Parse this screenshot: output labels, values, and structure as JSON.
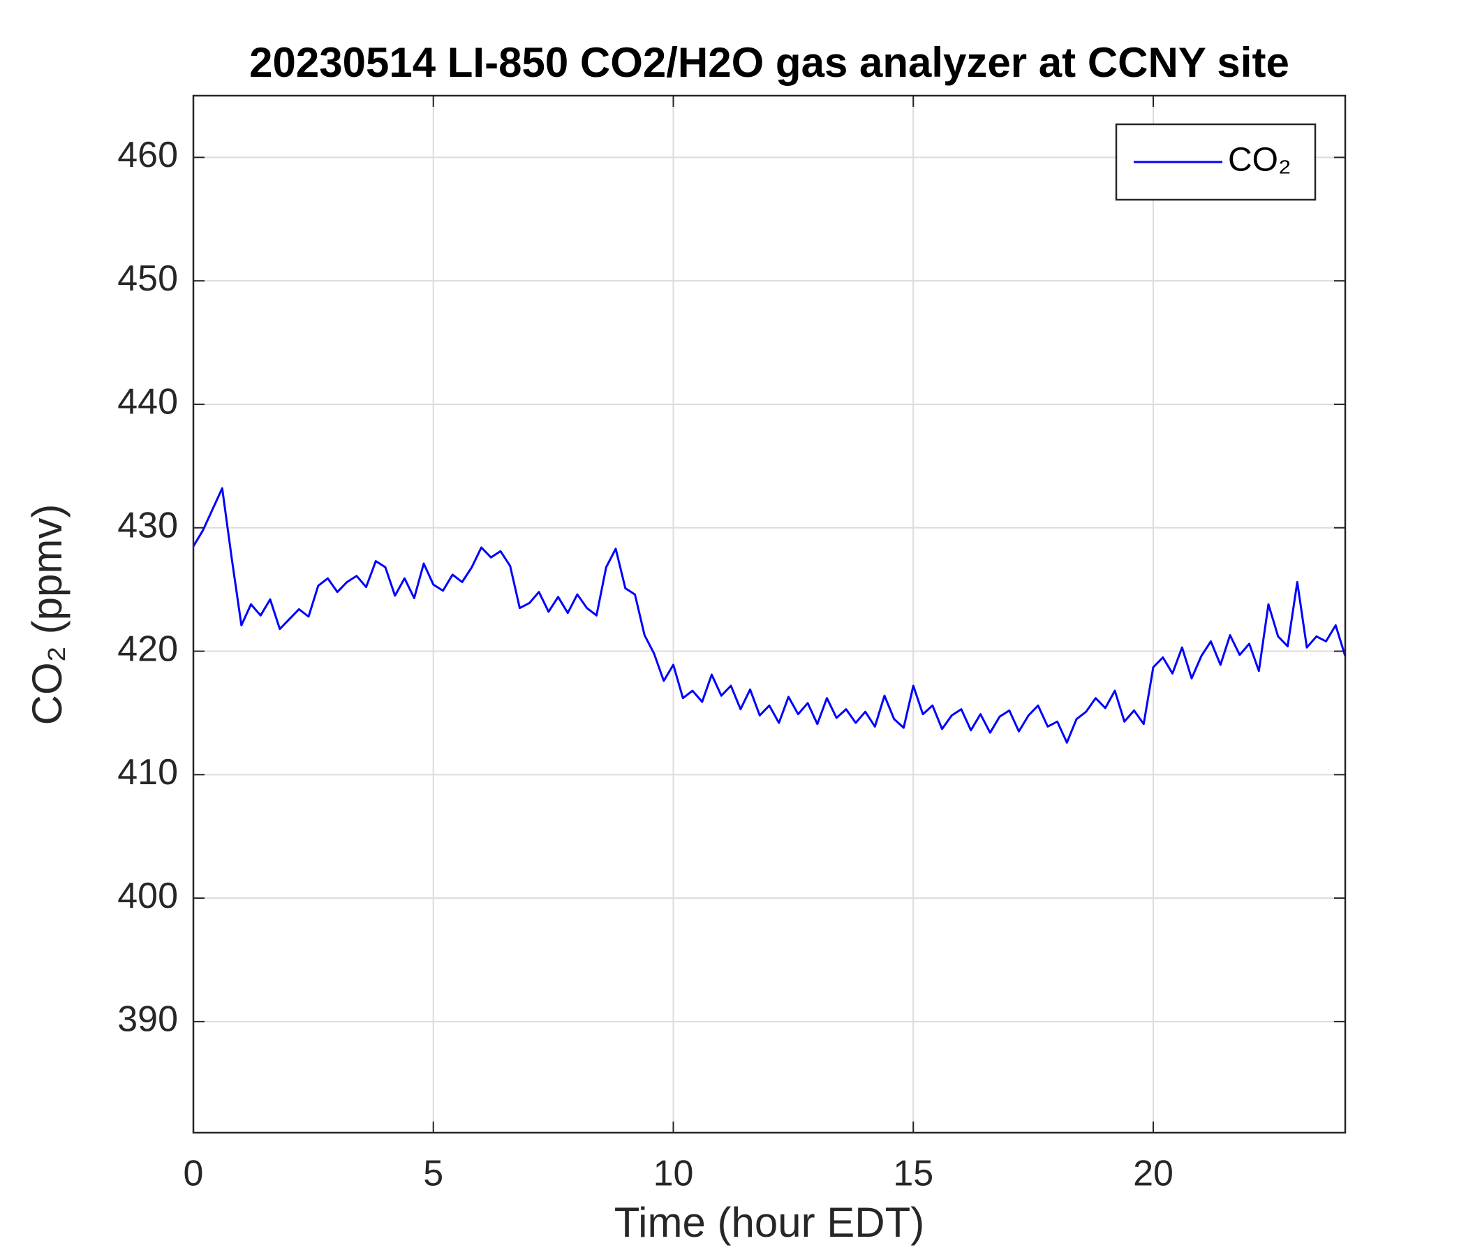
{
  "chart_data": {
    "type": "line",
    "title": "20230514 LI-850 CO2/H2O gas analyzer at CCNY site",
    "x_label": "Time (hour EDT)",
    "y_label": "CO₂ (ppmv)",
    "x": [
      0,
      0.2,
      0.4,
      0.6,
      0.8,
      1,
      1.2,
      1.4,
      1.6,
      1.8,
      2,
      2.2,
      2.4,
      2.6,
      2.8,
      3,
      3.2,
      3.4,
      3.6,
      3.8,
      4,
      4.2,
      4.4,
      4.6,
      4.8,
      5,
      5.2,
      5.4,
      5.6,
      5.8,
      6,
      6.2,
      6.4,
      6.6,
      6.8,
      7,
      7.2,
      7.4,
      7.6,
      7.8,
      8,
      8.2,
      8.4,
      8.6,
      8.8,
      9,
      9.2,
      9.4,
      9.6,
      9.8,
      10,
      10.2,
      10.4,
      10.6,
      10.8,
      11,
      11.2,
      11.4,
      11.6,
      11.8,
      12,
      12.2,
      12.4,
      12.6,
      12.8,
      13,
      13.2,
      13.4,
      13.6,
      13.8,
      14,
      14.2,
      14.4,
      14.6,
      14.8,
      15,
      15.2,
      15.4,
      15.6,
      15.8,
      16,
      16.2,
      16.4,
      16.6,
      16.8,
      17,
      17.2,
      17.4,
      17.6,
      17.8,
      18,
      18.2,
      18.4,
      18.6,
      18.8,
      19,
      19.2,
      19.4,
      19.6,
      19.8,
      20,
      20.2,
      20.4,
      20.6,
      20.8,
      21,
      21.2,
      21.4,
      21.6,
      21.8,
      22,
      22.2,
      22.4,
      22.6,
      22.8,
      23,
      23.2,
      23.4,
      23.6,
      23.8,
      24
    ],
    "series": [
      {
        "name": "CO₂",
        "color": "#0000ff",
        "values": [
          428.5,
          429.8,
          431.5,
          433.2,
          427.5,
          422.1,
          423.8,
          422.9,
          424.2,
          421.8,
          422.6,
          423.4,
          422.8,
          425.3,
          425.9,
          424.8,
          425.6,
          426.1,
          425.2,
          427.3,
          426.8,
          424.5,
          425.9,
          424.3,
          427.1,
          425.4,
          424.9,
          426.2,
          425.6,
          426.8,
          428.4,
          427.6,
          428.1,
          426.9,
          423.5,
          423.9,
          424.8,
          423.2,
          424.4,
          423.1,
          424.6,
          423.5,
          422.9,
          426.8,
          428.3,
          425.1,
          424.6,
          421.3,
          419.8,
          417.6,
          418.9,
          416.2,
          416.8,
          415.9,
          418.1,
          416.4,
          417.2,
          415.3,
          416.9,
          414.8,
          415.6,
          414.2,
          416.3,
          414.9,
          415.8,
          414.1,
          416.2,
          414.6,
          415.3,
          414.2,
          415.1,
          413.9,
          416.4,
          414.5,
          413.8,
          417.2,
          414.9,
          415.6,
          413.7,
          414.8,
          415.3,
          413.6,
          414.9,
          413.4,
          414.7,
          415.2,
          413.5,
          414.8,
          415.6,
          413.9,
          414.3,
          412.6,
          414.5,
          415.1,
          416.2,
          415.4,
          416.8,
          414.3,
          415.2,
          414.1,
          418.7,
          419.5,
          418.2,
          420.3,
          417.8,
          419.6,
          420.8,
          418.9,
          421.3,
          419.7,
          420.6,
          418.4,
          423.8,
          421.2,
          420.4,
          425.6,
          420.3,
          421.2,
          420.8,
          422.1,
          419.6
        ]
      }
    ],
    "xlim": [
      0,
      24
    ],
    "xticks": [
      0,
      5,
      10,
      15,
      20
    ],
    "ylim": [
      381,
      465
    ],
    "yticks": [
      390,
      400,
      410,
      420,
      430,
      440,
      450,
      460
    ],
    "grid": true,
    "legend": "upper right"
  }
}
